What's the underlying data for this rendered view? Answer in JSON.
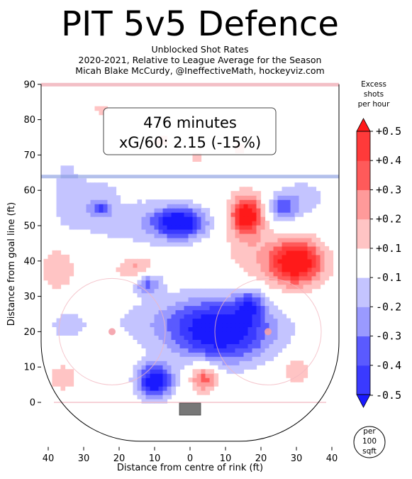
{
  "title": "PIT 5v5 Defence",
  "subtitle_lines": [
    "Unblocked Shot Rates",
    "2020-2021, Relative to League Average for the Season",
    "Micah Blake McCurdy, @IneffectiveMath, hockeyviz.com"
  ],
  "annotation": {
    "minutes": "476 minutes",
    "xg": "xG/60: 2.15 (-15%)"
  },
  "per_area_badge": [
    "per",
    "100",
    "sqft"
  ],
  "colors": {
    "blue_strong": "#1a1aff",
    "blue_mid": "#5a5aff",
    "blue_light": "#9a9aff",
    "blue_faint": "#c4c4ff",
    "red_strong": "#ff1a1a",
    "red_mid": "#ff5a5a",
    "red_light": "#ff9a9a",
    "red_faint": "#ffc4c4",
    "blue_line": "#8a9ee0",
    "goal_line": "#f2b8c0",
    "net": "#777777"
  },
  "chart_data": {
    "type": "heatmap",
    "title": "PIT 5v5 Defence",
    "xlabel": "Distance from centre of rink (ft)",
    "ylabel": "Distance from goal line (ft)",
    "xlim": [
      -42.5,
      42.5
    ],
    "ylim": [
      -11,
      90
    ],
    "x_ticks": [
      -40,
      -30,
      -20,
      -10,
      0,
      10,
      20,
      30,
      40
    ],
    "x_tick_labels": [
      "40",
      "30",
      "20",
      "10",
      "0",
      "10",
      "20",
      "30",
      "40"
    ],
    "y_ticks": [
      0,
      10,
      20,
      30,
      40,
      50,
      60,
      70,
      80,
      90
    ],
    "y_tick_labels": [
      "0",
      "10",
      "20",
      "30",
      "40",
      "50",
      "60",
      "70",
      "80",
      "90"
    ],
    "colorbar": {
      "title_lines": [
        "Excess",
        "shots",
        "per hour"
      ],
      "levels": [
        -0.5,
        -0.4,
        -0.3,
        -0.2,
        -0.1,
        0.1,
        0.2,
        0.3,
        0.4,
        0.5
      ],
      "labels": [
        "-0.5",
        "-0.4",
        "-0.3",
        "-0.2",
        "-0.1",
        "+0.1",
        "+0.2",
        "+0.3",
        "+0.4",
        "+0.5"
      ],
      "colors": [
        "#1a1aff",
        "#3a3aff",
        "#5a5aff",
        "#9a9aff",
        "#c4c4ff",
        "#ffffff",
        "#ffc4c4",
        "#ff9a9a",
        "#ff5a5a",
        "#ff3a3a",
        "#ff1a1a"
      ]
    },
    "blobs": [
      {
        "x": 9,
        "y": 20,
        "rx": 14,
        "ry": 9,
        "v": -0.55
      },
      {
        "x": 17,
        "y": 28,
        "rx": 4,
        "ry": 4,
        "v": -0.3
      },
      {
        "x": -1,
        "y": 23,
        "rx": 26,
        "ry": 8,
        "v": -0.15
      },
      {
        "x": -10,
        "y": 6,
        "rx": 5,
        "ry": 5,
        "v": -0.6
      },
      {
        "x": -12,
        "y": 34,
        "rx": 4,
        "ry": 3,
        "v": -0.35
      },
      {
        "x": -3,
        "y": 51,
        "rx": 7,
        "ry": 4,
        "v": -0.55
      },
      {
        "x": -8,
        "y": 50,
        "rx": 16,
        "ry": 8,
        "v": -0.15
      },
      {
        "x": -27,
        "y": 56,
        "rx": 10,
        "ry": 8,
        "v": -0.18
      },
      {
        "x": -25,
        "y": 55,
        "rx": 2,
        "ry": 1.5,
        "v": -0.25
      },
      {
        "x": 26,
        "y": 55,
        "rx": 4,
        "ry": 4,
        "v": -0.35
      },
      {
        "x": 32,
        "y": 58,
        "rx": 7,
        "ry": 6,
        "v": -0.15
      },
      {
        "x": -35,
        "y": 62,
        "rx": 4,
        "ry": 15,
        "v": -0.1
      },
      {
        "x": -35,
        "y": 22,
        "rx": 6,
        "ry": 5,
        "v": -0.12
      },
      {
        "x": 16,
        "y": 53,
        "rx": 4,
        "ry": 5,
        "v": 0.55
      },
      {
        "x": 15,
        "y": 49,
        "rx": 8,
        "ry": 12,
        "v": 0.15
      },
      {
        "x": 30,
        "y": 40,
        "rx": 7,
        "ry": 6,
        "v": 0.55
      },
      {
        "x": 27,
        "y": 38,
        "rx": 12,
        "ry": 9,
        "v": 0.15
      },
      {
        "x": 4,
        "y": 7,
        "rx": 4,
        "ry": 4,
        "v": 0.4
      },
      {
        "x": -15,
        "y": 38,
        "rx": 6,
        "ry": 4,
        "v": 0.25
      },
      {
        "x": -37,
        "y": 38,
        "rx": 6,
        "ry": 8,
        "v": 0.17
      },
      {
        "x": -36,
        "y": 7,
        "rx": 5,
        "ry": 5,
        "v": 0.15
      },
      {
        "x": 30,
        "y": 9,
        "rx": 4,
        "ry": 4,
        "v": 0.2
      },
      {
        "x": -25,
        "y": 83,
        "rx": 4,
        "ry": 3,
        "v": 0.12
      },
      {
        "x": -8,
        "y": 74,
        "rx": 4,
        "ry": 3,
        "v": 0.12
      },
      {
        "x": 2,
        "y": 69,
        "rx": 3,
        "ry": 3,
        "v": 0.12
      },
      {
        "x": 14,
        "y": 72,
        "rx": 3,
        "ry": 3,
        "v": 0.12
      },
      {
        "x": -18,
        "y": 58,
        "rx": 2,
        "ry": 2,
        "v": 0.12
      }
    ]
  }
}
